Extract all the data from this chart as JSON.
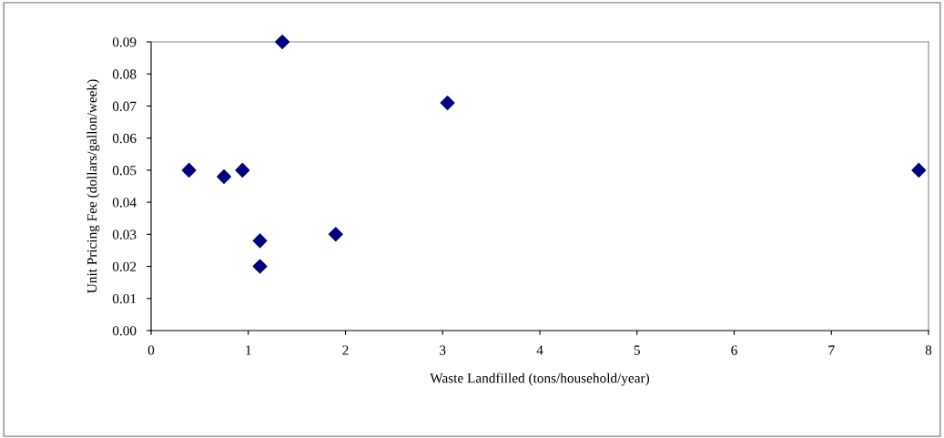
{
  "chart_data": {
    "type": "scatter",
    "xlabel": "Waste Landfilled (tons/household/year)",
    "ylabel": "Unit Pricing Fee (dollars/gallon/week)",
    "x": [
      0.39,
      0.75,
      0.94,
      1.12,
      1.12,
      1.35,
      1.9,
      3.05,
      7.9
    ],
    "values": [
      0.05,
      0.048,
      0.05,
      0.028,
      0.02,
      0.09,
      0.03,
      0.071,
      0.05
    ],
    "color": "#000080",
    "marker": "diamond",
    "grid": false,
    "legend": false,
    "xlim": [
      0,
      8
    ],
    "xticks": [
      0,
      1,
      2,
      3,
      4,
      5,
      6,
      7,
      8
    ],
    "ylim": [
      0,
      0.09
    ],
    "yticks": [
      {
        "value": 0,
        "label": "0.00"
      },
      {
        "value": 0.01,
        "label": "0.01"
      },
      {
        "value": 0.02,
        "label": "0.02"
      },
      {
        "value": 0.03,
        "label": "0.03"
      },
      {
        "value": 0.04,
        "label": "0.04"
      },
      {
        "value": 0.05,
        "label": "0.05"
      },
      {
        "value": 0.06,
        "label": "0.06"
      },
      {
        "value": 0.07,
        "label": "0.07"
      },
      {
        "value": 0.08,
        "label": "0.08"
      },
      {
        "value": 0.09,
        "label": "0.09"
      }
    ]
  }
}
